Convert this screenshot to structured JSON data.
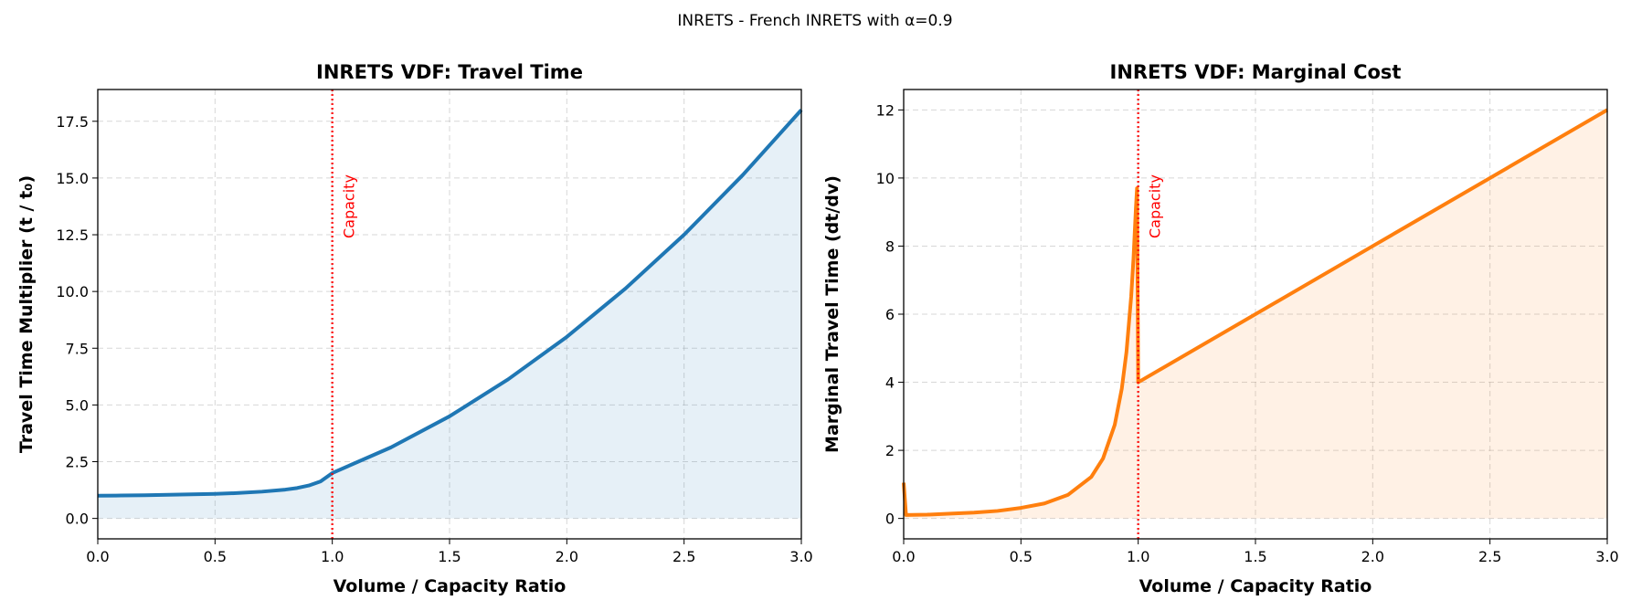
{
  "title": "INRETS - French INRETS with α=0.9",
  "chart_data": [
    {
      "type": "line",
      "title": "INRETS VDF: Travel Time",
      "xlabel": "Volume / Capacity Ratio",
      "ylabel": "Travel Time Multiplier (t / t₀)",
      "x": [
        0,
        0.1,
        0.2,
        0.3,
        0.4,
        0.5,
        0.6,
        0.7,
        0.8,
        0.85,
        0.9,
        0.95,
        1.0,
        1.25,
        1.5,
        1.75,
        2.0,
        2.25,
        2.5,
        2.75,
        3.0
      ],
      "series": [
        {
          "color": "#1f77b4",
          "fill": true,
          "values": [
            1.0,
            1.01,
            1.02,
            1.04,
            1.06,
            1.08,
            1.12,
            1.18,
            1.27,
            1.34,
            1.45,
            1.63,
            2.0,
            3.13,
            4.5,
            6.13,
            8.0,
            10.13,
            12.5,
            15.13,
            18.0
          ]
        }
      ],
      "xlim": [
        0,
        3
      ],
      "ylim": [
        -0.9,
        18.9
      ],
      "xticks": [
        {
          "value": 0,
          "label": "0.0"
        },
        0.5,
        {
          "value": 1,
          "label": "1.0"
        },
        1.5,
        {
          "value": 2,
          "label": "2.0"
        },
        2.5,
        {
          "value": 3,
          "label": "3.0"
        }
      ],
      "yticks": [
        {
          "value": 0,
          "label": "0.0"
        },
        2.5,
        {
          "value": 5,
          "label": "5.0"
        },
        7.5,
        {
          "value": 10,
          "label": "10.0"
        },
        12.5,
        {
          "value": 15,
          "label": "15.0"
        },
        17.5
      ],
      "grid": true,
      "annotation": {
        "x": 1.0,
        "label": "Capacity",
        "color": "red"
      }
    },
    {
      "type": "line",
      "title": "INRETS VDF: Marginal Cost",
      "xlabel": "Volume / Capacity Ratio",
      "ylabel": "Marginal Travel Time (dt/dv)",
      "x": [
        0,
        0.01,
        0.1,
        0.2,
        0.3,
        0.4,
        0.5,
        0.6,
        0.7,
        0.8,
        0.85,
        0.9,
        0.93,
        0.95,
        0.97,
        0.98,
        0.99,
        0.995,
        1.0,
        2.0,
        3.0
      ],
      "series": [
        {
          "color": "#ff7f0e",
          "fill": true,
          "values": [
            1.05,
            0.1,
            0.11,
            0.14,
            0.17,
            0.22,
            0.31,
            0.44,
            0.69,
            1.22,
            1.76,
            2.75,
            3.81,
            4.89,
            6.51,
            7.64,
            9.09,
            9.7,
            4.0,
            8.0,
            12.0
          ]
        }
      ],
      "xlim": [
        0,
        3
      ],
      "ylim": [
        -0.6,
        12.6
      ],
      "xticks": [
        {
          "value": 0,
          "label": "0.0"
        },
        0.5,
        {
          "value": 1,
          "label": "1.0"
        },
        1.5,
        {
          "value": 2,
          "label": "2.0"
        },
        2.5,
        {
          "value": 3,
          "label": "3.0"
        }
      ],
      "yticks": [
        0,
        2,
        4,
        6,
        8,
        10,
        12
      ],
      "grid": true,
      "annotation": {
        "x": 1.0,
        "label": "Capacity",
        "color": "red"
      }
    }
  ]
}
